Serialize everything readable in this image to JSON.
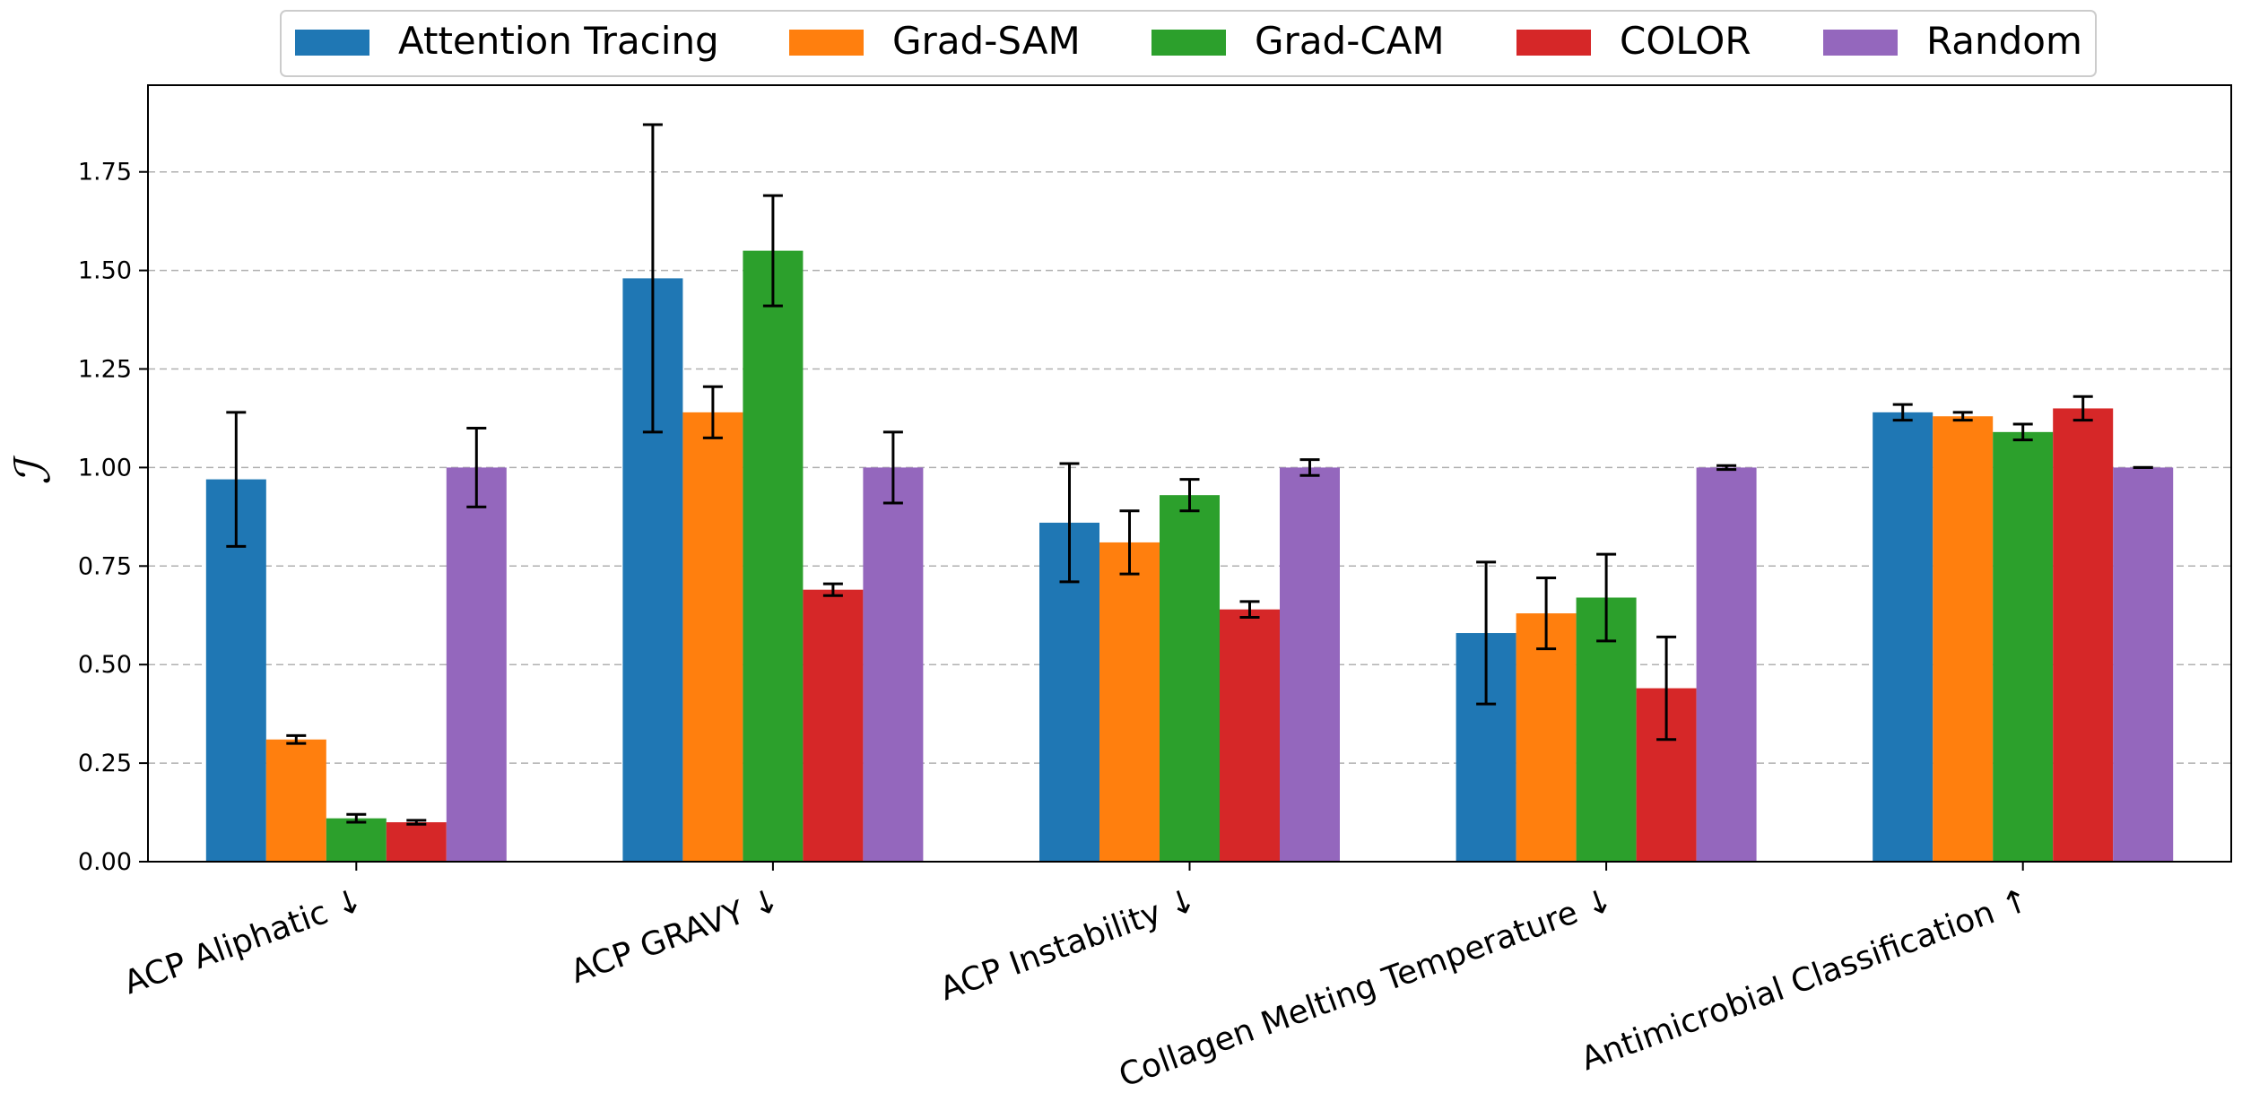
{
  "chart_data": {
    "type": "bar",
    "title": "",
    "xlabel": "",
    "ylabel": "ℐ",
    "ylim": [
      0,
      1.97
    ],
    "yticks": [
      "0.00",
      "0.25",
      "0.50",
      "0.75",
      "1.00",
      "1.25",
      "1.50",
      "1.75"
    ],
    "grid": "horizontal dashed",
    "legend_position": "top",
    "categories": [
      "ACP Aliphatic ↓",
      "ACP GRAVY ↓",
      "ACP Instability ↓",
      "Collagen Melting Temperature ↓",
      "Antimicrobial Classification ↑"
    ],
    "series": [
      {
        "name": "Attention Tracing",
        "color": "#1f77b4",
        "values": [
          0.97,
          1.48,
          0.86,
          0.58,
          1.14
        ],
        "errors": [
          0.17,
          0.39,
          0.15,
          0.18,
          0.02
        ]
      },
      {
        "name": "Grad-SAM",
        "color": "#ff7f0e",
        "values": [
          0.31,
          1.14,
          0.81,
          0.63,
          1.13
        ],
        "errors": [
          0.01,
          0.065,
          0.08,
          0.09,
          0.01
        ]
      },
      {
        "name": "Grad-CAM",
        "color": "#2ca02c",
        "values": [
          0.11,
          1.55,
          0.93,
          0.67,
          1.09
        ],
        "errors": [
          0.01,
          0.14,
          0.04,
          0.11,
          0.02
        ]
      },
      {
        "name": "COLOR",
        "color": "#d62728",
        "values": [
          0.1,
          0.69,
          0.64,
          0.44,
          1.15
        ],
        "errors": [
          0.005,
          0.015,
          0.02,
          0.13,
          0.03
        ]
      },
      {
        "name": "Random",
        "color": "#9467bd",
        "values": [
          1.0,
          1.0,
          1.0,
          1.0,
          1.0
        ],
        "errors": [
          0.1,
          0.09,
          0.02,
          0.005,
          0.0
        ]
      }
    ]
  }
}
